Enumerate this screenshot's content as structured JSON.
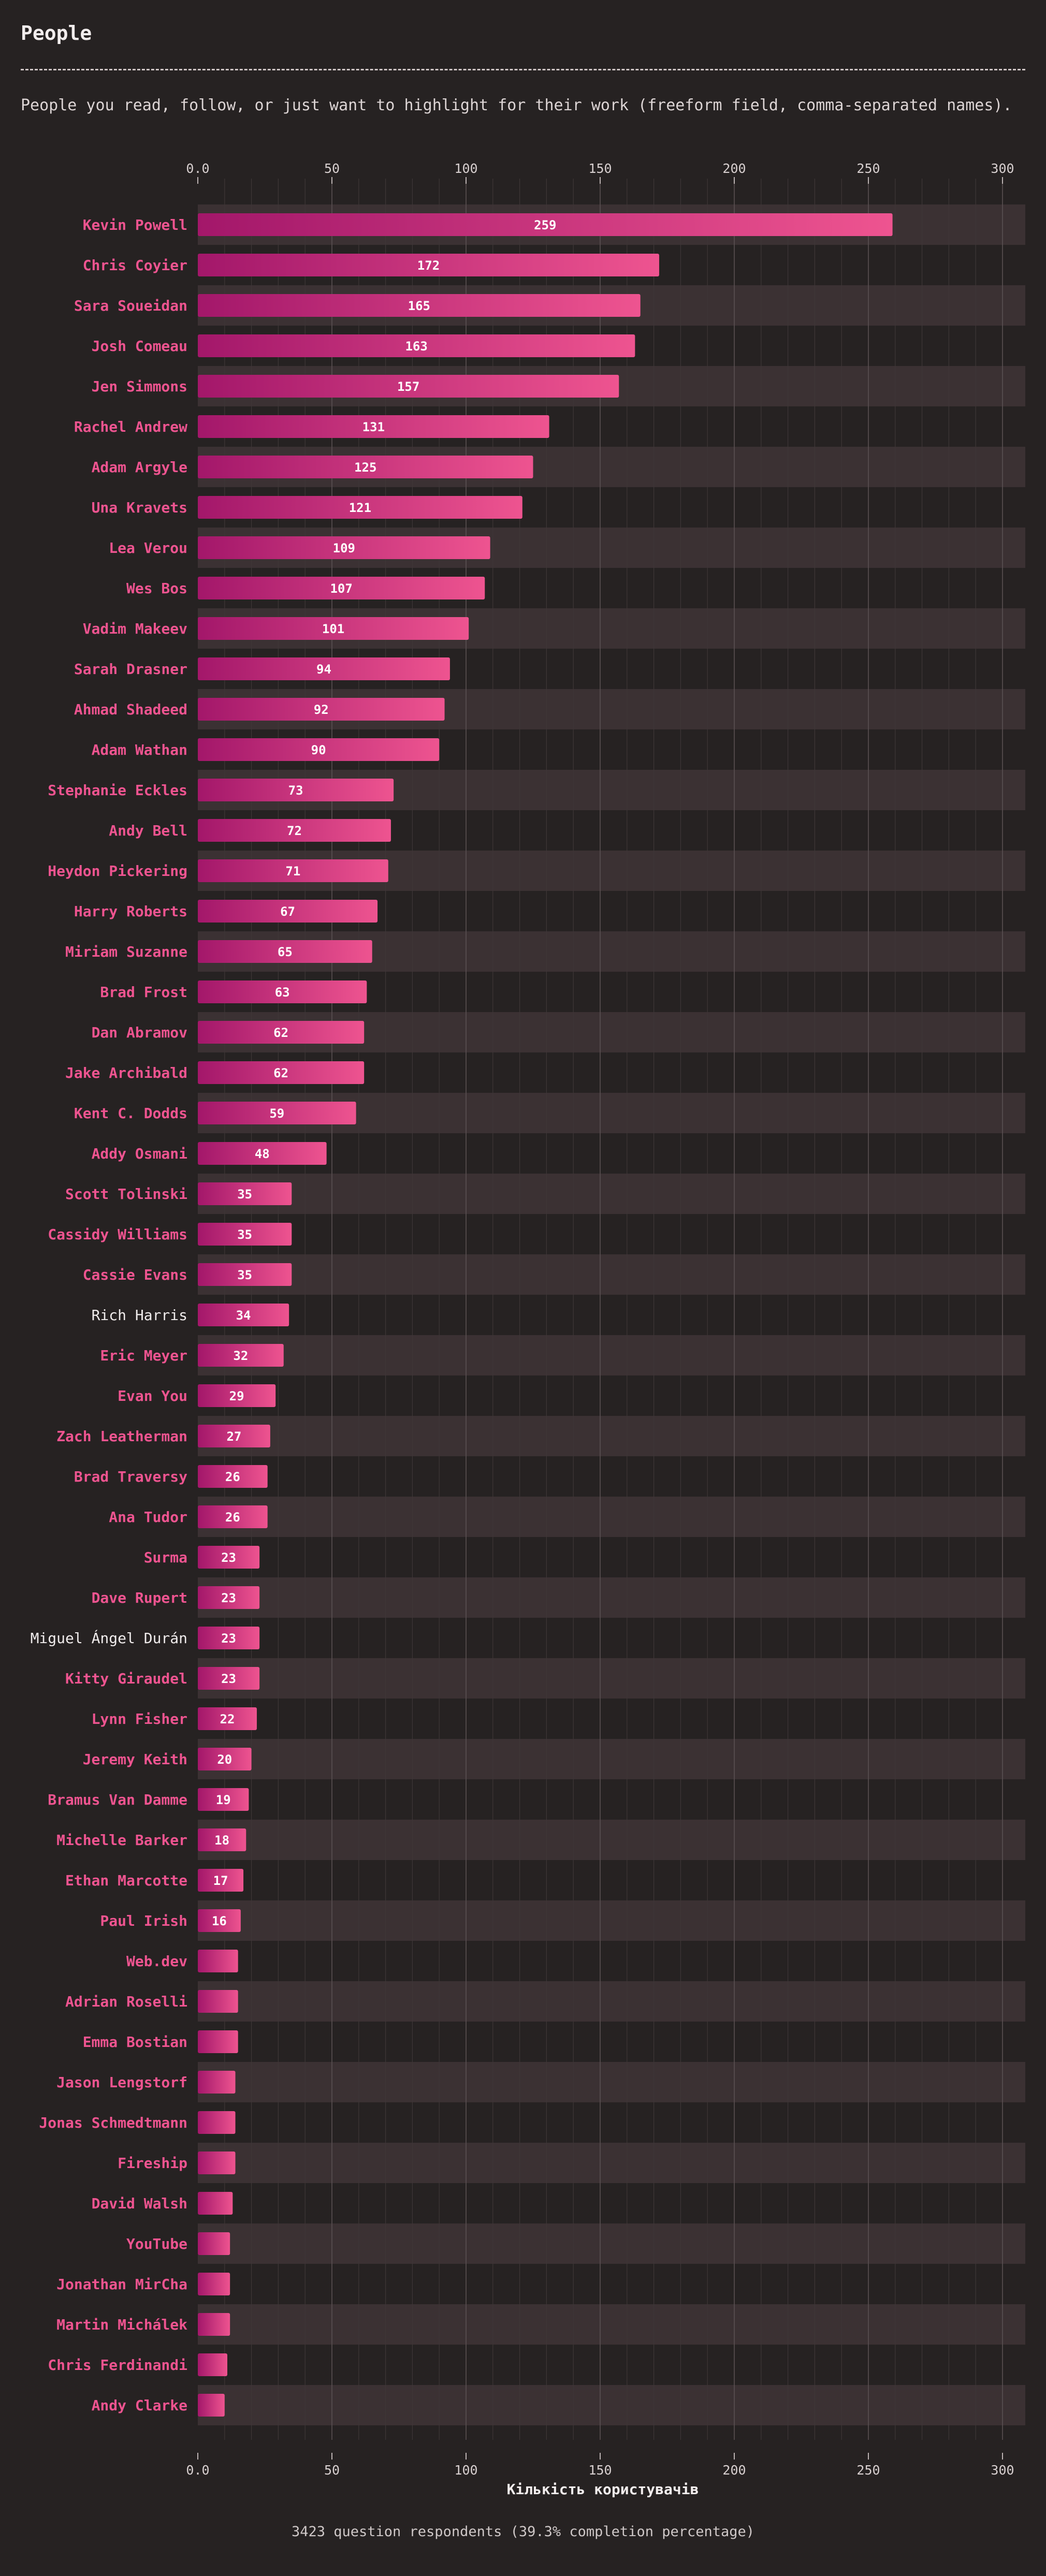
{
  "header": {
    "title": "People",
    "description": "People you read, follow, or just want to highlight for their work (freeform field, comma-separated names)."
  },
  "footer": {
    "respondents": "3423 question respondents (39.3% completion percentage)"
  },
  "colors": {
    "background": "#262222",
    "band": "#3b3133",
    "bar_start": "#a3176a",
    "bar_end": "#ee5490",
    "label_pink": "#ee5490",
    "label_plain": "#f0ecec"
  },
  "chart_data": {
    "type": "bar",
    "orientation": "horizontal",
    "xlabel": "Кількість користувачів",
    "xlim": [
      0,
      310
    ],
    "xticks": [
      0,
      50,
      100,
      150,
      200,
      250,
      300
    ],
    "xtick_labels": [
      "0.0",
      "50",
      "100",
      "150",
      "200",
      "250",
      "300"
    ],
    "categories": [
      "Kevin Powell",
      "Chris Coyier",
      "Sara Soueidan",
      "Josh Comeau",
      "Jen Simmons",
      "Rachel Andrew",
      "Adam Argyle",
      "Una Kravets",
      "Lea Verou",
      "Wes Bos",
      "Vadim Makeev",
      "Sarah Drasner",
      "Ahmad Shadeed",
      "Adam Wathan",
      "Stephanie Eckles",
      "Andy Bell",
      "Heydon Pickering",
      "Harry Roberts",
      "Miriam Suzanne",
      "Brad Frost",
      "Dan Abramov",
      "Jake Archibald",
      "Kent C. Dodds",
      "Addy Osmani",
      "Scott Tolinski",
      "Cassidy Williams",
      "Cassie Evans",
      "Rich Harris",
      "Eric Meyer",
      "Evan You",
      "Zach Leatherman",
      "Brad Traversy",
      "Ana Tudor",
      "Surma",
      "Dave Rupert",
      "Miguel Ángel Durán",
      "Kitty Giraudel",
      "Lynn Fisher",
      "Jeremy Keith",
      "Bramus Van Damme",
      "Michelle Barker",
      "Ethan Marcotte",
      "Paul Irish",
      "Web.dev",
      "Adrian Roselli",
      "Emma Bostian",
      "Jason Lengstorf",
      "Jonas Schmedtmann",
      "Fireship",
      "David Walsh",
      "YouTube",
      "Jonathan MirCha",
      "Martin Michálek",
      "Chris Ferdinandi",
      "Andy Clarke"
    ],
    "values": [
      259,
      172,
      165,
      163,
      157,
      131,
      125,
      121,
      109,
      107,
      101,
      94,
      92,
      90,
      73,
      72,
      71,
      67,
      65,
      63,
      62,
      62,
      59,
      48,
      35,
      35,
      35,
      34,
      32,
      29,
      27,
      26,
      26,
      23,
      23,
      23,
      23,
      22,
      20,
      19,
      18,
      17,
      16,
      15,
      15,
      15,
      14,
      14,
      14,
      13,
      12,
      12,
      12,
      11,
      10
    ],
    "value_labels": [
      "259",
      "172",
      "165",
      "163",
      "157",
      "131",
      "125",
      "121",
      "109",
      "107",
      "101",
      "94",
      "92",
      "90",
      "73",
      "72",
      "71",
      "67",
      "65",
      "63",
      "62",
      "62",
      "59",
      "48",
      "35",
      "35",
      "35",
      "34",
      "32",
      "29",
      "27",
      "26",
      "26",
      "23",
      "23",
      "23",
      "23",
      "22",
      "20",
      "19",
      "18",
      "17",
      "16",
      "",
      "",
      "",
      "",
      "",
      "",
      "",
      "",
      "",
      "",
      "",
      ""
    ],
    "label_plain": [
      "Rich Harris",
      "Miguel Ángel Durán"
    ],
    "grid": true
  }
}
